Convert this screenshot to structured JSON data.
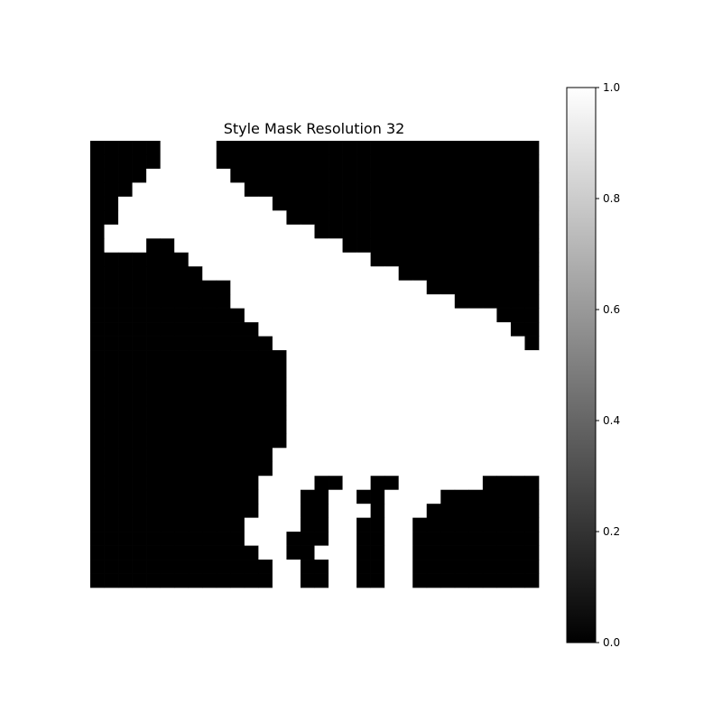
{
  "chart_data": {
    "type": "heatmap",
    "title": "Style Mask Resolution 32",
    "xlabel": "",
    "ylabel": "",
    "grid": false,
    "axes_visible": false,
    "colormap": "gray",
    "value_range": [
      0.0,
      1.0
    ],
    "shape": [
      32,
      32
    ],
    "colorbar": {
      "ticks": [
        0.0,
        0.2,
        0.4,
        0.6,
        0.8,
        1.0
      ],
      "tick_labels": [
        "0.0",
        "0.2",
        "0.4",
        "0.6",
        "0.8",
        "1.0"
      ]
    },
    "mask_rows": [
      "00000111100000000000000000000000",
      "00000111100000000000000000000000",
      "00001111110000000000000000000000",
      "00011111111000000000000000000000",
      "00111111111110000000000000000000",
      "00111111111111000000000000000000",
      "01111111111111110000000000000000",
      "01110011111111111100000000000000",
      "00000001111111111111000000000000",
      "00000000111111111111110000000000",
      "00000000001111111111111100000000",
      "00000000001111111111111111000000",
      "00000000000111111111111111111000",
      "00000000000011111111111111111100",
      "00000000000001111111111111111110",
      "00000000000000111111111111111111",
      "00000000000000111111111111111111",
      "00000000000000111111111111111111",
      "00000000000000111111111111111111",
      "00000000000000111111111111111111",
      "00000000000000111111111111111111",
      "00000000000000111111111111111111",
      "00000000000001111111111111111111",
      "00000000000001111111111111111111",
      "00000000000011110011001111110000",
      "00000000000011100110011110000000",
      "00000000000011100111011100000000",
      "00000000000111100110011000000000",
      "00000000000111000110011000000000",
      "00000000000011001110011000000000",
      "00000000000001100110011000000000",
      "00000000000001100110011000000000"
    ]
  }
}
